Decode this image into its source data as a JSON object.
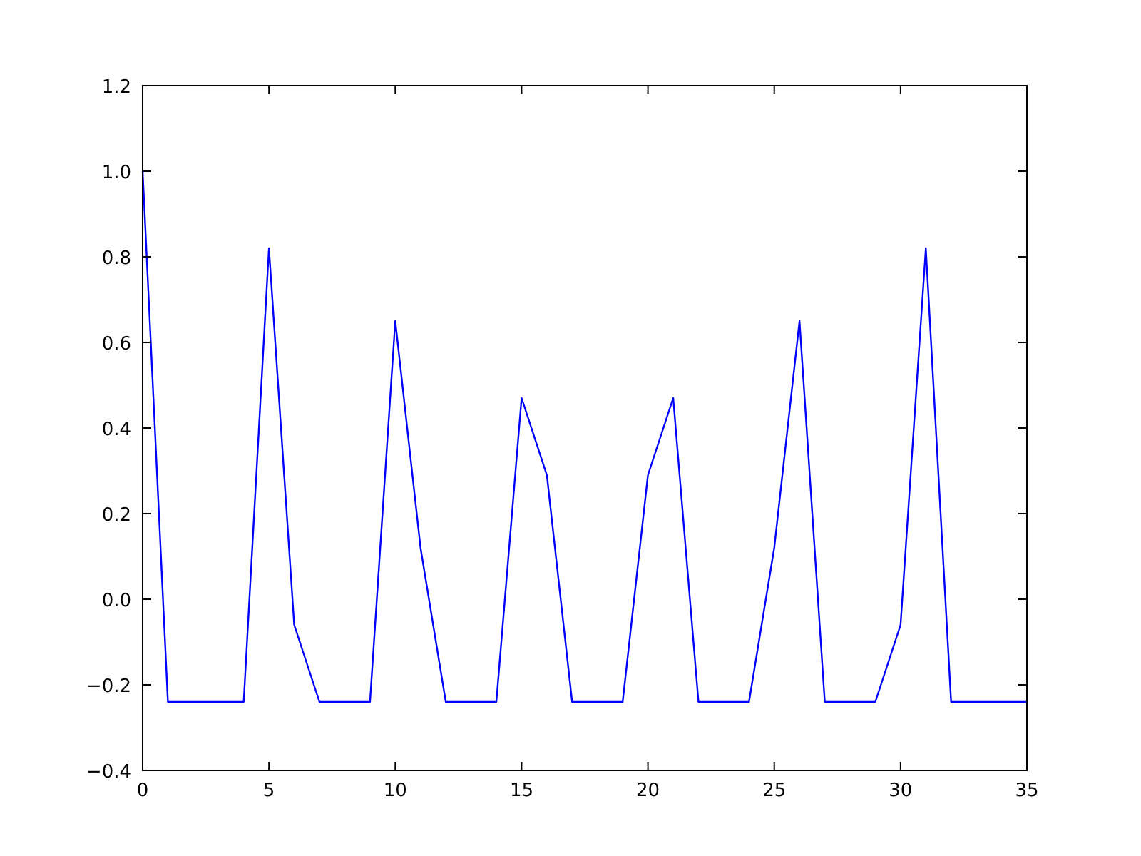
{
  "chart_data": {
    "type": "line",
    "x": [
      0,
      1,
      2,
      3,
      4,
      5,
      6,
      7,
      8,
      9,
      10,
      11,
      12,
      13,
      14,
      15,
      16,
      17,
      18,
      19,
      20,
      21,
      22,
      23,
      24,
      25,
      26,
      27,
      28,
      29,
      30,
      31,
      32,
      33,
      34,
      35
    ],
    "series": [
      {
        "color": "#0000ff",
        "values": [
          1.0,
          -0.24,
          -0.24,
          -0.24,
          -0.24,
          0.82,
          -0.06,
          -0.24,
          -0.24,
          -0.24,
          0.65,
          0.12,
          -0.24,
          -0.24,
          -0.24,
          0.47,
          0.29,
          -0.24,
          -0.24,
          -0.24,
          0.29,
          0.47,
          -0.24,
          -0.24,
          -0.24,
          0.12,
          0.65,
          -0.24,
          -0.24,
          -0.24,
          -0.06,
          0.82,
          -0.24,
          -0.24,
          -0.24,
          -0.24
        ]
      }
    ],
    "xlim": [
      0,
      35
    ],
    "xticks": [
      0,
      5,
      10,
      15,
      20,
      25,
      30,
      35
    ],
    "ylim": [
      -0.4,
      1.2
    ],
    "yticks": [
      {
        "value": -0.4,
        "label": "−0.4"
      },
      {
        "value": -0.2,
        "label": "−0.2"
      },
      {
        "value": 0,
        "label": "0.0"
      },
      0.2,
      0.4,
      0.6,
      0.8,
      {
        "value": 1,
        "label": "1.0"
      },
      1.2
    ],
    "marker": "none",
    "line_style": "solid"
  }
}
